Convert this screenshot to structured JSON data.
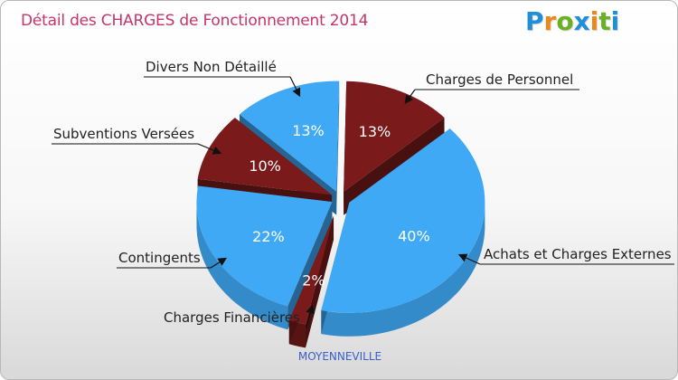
{
  "chart_data": {
    "type": "pie",
    "title": "Détail des CHARGES de Fonctionnement 2014",
    "xlabel": "MOYENNEVILLE",
    "slices": [
      {
        "label": "Charges de Personnel",
        "percent": 13,
        "value_label": "13%",
        "color": "#7a1a1a"
      },
      {
        "label": "Achats et Charges Externes",
        "percent": 40,
        "value_label": "40%",
        "color": "#3fa9f5"
      },
      {
        "label": "Charges Financières",
        "percent": 2,
        "value_label": "2%",
        "color": "#7a1a1a"
      },
      {
        "label": "Contingents",
        "percent": 22,
        "value_label": "22%",
        "color": "#3fa9f5"
      },
      {
        "label": "Subventions Versées",
        "percent": 10,
        "value_label": "10%",
        "color": "#7a1a1a"
      },
      {
        "label": "Divers Non Détaillé",
        "percent": 13,
        "value_label": "13%",
        "color": "#3fa9f5"
      }
    ]
  },
  "logo": {
    "text": "Proxiti",
    "letters": [
      "P",
      "r",
      "o",
      "x",
      "i",
      "t",
      "i"
    ],
    "letter_colors": [
      "#1f8fd8",
      "#e8891c",
      "#6ab023",
      "#1f8fd8",
      "#e8891c",
      "#6ab023",
      "#1f8fd8"
    ]
  },
  "colors": {
    "title": "#c4366a",
    "commune": "#3a5fcd",
    "dark_slice_side": "#5a0f0f",
    "light_slice_side": "#2b8fd6"
  }
}
